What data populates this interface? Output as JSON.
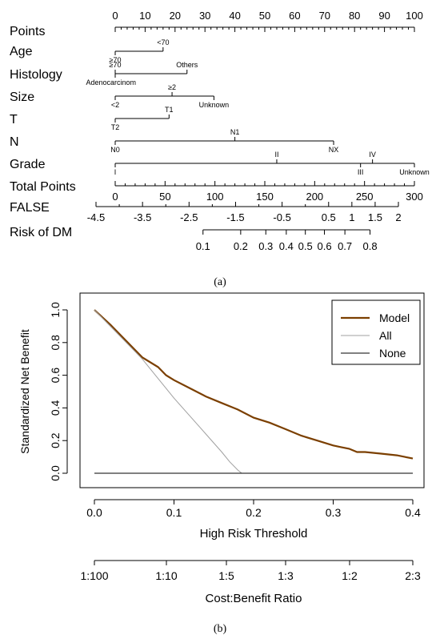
{
  "chart_data": [
    {
      "type": "nomogram",
      "caption": "(a)",
      "rows": [
        {
          "name": "Points",
          "kind": "scale",
          "min": 0,
          "max": 100,
          "labeled_ticks": [
            0,
            10,
            20,
            30,
            40,
            50,
            60,
            70,
            80,
            90,
            100
          ],
          "minor_step": 2,
          "label_side": "above"
        },
        {
          "name": "Age",
          "kind": "categorical",
          "range": [
            0,
            16
          ],
          "levels": [
            {
              "label": "<70",
              "value": 16,
              "side": "above"
            },
            {
              "label": "≥70",
              "value": 0,
              "side": "below"
            }
          ]
        },
        {
          "name": "Histology",
          "kind": "categorical",
          "range": [
            0,
            24
          ],
          "levels": [
            {
              "label": "Others",
              "value": 24,
              "side": "above"
            },
            {
              "label": "≥70",
              "value": 0,
              "side": "above"
            },
            {
              "label": "Adenocarcinom",
              "value": 0,
              "side": "below"
            }
          ]
        },
        {
          "name": "Size",
          "kind": "categorical",
          "range": [
            0,
            33
          ],
          "levels": [
            {
              "label": "≥2",
              "value": 19,
              "side": "above"
            },
            {
              "label": "<2",
              "value": 0,
              "side": "below"
            },
            {
              "label": "Unknown",
              "value": 33,
              "side": "below"
            }
          ]
        },
        {
          "name": "T",
          "kind": "categorical",
          "range": [
            0,
            18
          ],
          "levels": [
            {
              "label": "T1",
              "value": 18,
              "side": "above"
            },
            {
              "label": "T2",
              "value": 0,
              "side": "below"
            }
          ]
        },
        {
          "name": "N",
          "kind": "categorical",
          "range": [
            0,
            73
          ],
          "levels": [
            {
              "label": "N1",
              "value": 40,
              "side": "above"
            },
            {
              "label": "N0",
              "value": 0,
              "side": "below"
            },
            {
              "label": "NX",
              "value": 73,
              "side": "below"
            }
          ]
        },
        {
          "name": "Grade",
          "kind": "categorical",
          "range": [
            0,
            100
          ],
          "levels": [
            {
              "label": "II",
              "value": 54,
              "side": "above"
            },
            {
              "label": "IV",
              "value": 86,
              "side": "above"
            },
            {
              "label": "I",
              "value": 0,
              "side": "below"
            },
            {
              "label": "III",
              "value": 82,
              "side": "below"
            },
            {
              "label": "Unknown",
              "value": 100,
              "side": "below"
            }
          ]
        },
        {
          "name": "Total Points",
          "kind": "scale",
          "min": 0,
          "max": 300,
          "labeled_ticks": [
            0,
            50,
            100,
            150,
            200,
            250,
            300
          ],
          "minor_step": 10,
          "label_side": "below"
        },
        {
          "name": "FALSE",
          "kind": "scale",
          "min": -4.5,
          "max": 2,
          "labeled_ticks": [
            -4.5,
            -3.5,
            -2.5,
            -1.5,
            -0.5,
            0.5,
            1,
            1.5,
            2
          ],
          "tick_labels": [
            "-4.5",
            "-3.5",
            "-2.5",
            "-1.5",
            "-0.5",
            "0.5",
            "1",
            "1.5",
            "2"
          ],
          "minor_step": 0.5,
          "label_side": "below"
        },
        {
          "name": "Risk of DM",
          "kind": "probability",
          "ticks": [
            {
              "label": "0.1",
              "value": -2.2
            },
            {
              "label": "0.2",
              "value": -1.39
            },
            {
              "label": "0.3",
              "value": -0.85
            },
            {
              "label": "0.4",
              "value": -0.41
            },
            {
              "label": "0.5",
              "value": 0
            },
            {
              "label": "0.6",
              "value": 0.41
            },
            {
              "label": "0.7",
              "value": 0.85
            },
            {
              "label": "0.8",
              "value": 1.39
            }
          ],
          "tick_text": [
            "0.1",
            "0.2",
            "0.3",
            "0.4",
            "0.5",
            "0.6",
            "0.7",
            "0.8"
          ]
        }
      ]
    },
    {
      "type": "line",
      "caption": "(b)",
      "xlabel": "High Risk Threshold",
      "ylabel": "Standardized Net Benefit",
      "xlim": [
        0,
        0.4
      ],
      "ylim": [
        0,
        1
      ],
      "x_ticks": [
        "0.0",
        "0.1",
        "0.2",
        "0.3",
        "0.4"
      ],
      "y_ticks": [
        "0.0",
        "0.2",
        "0.4",
        "0.6",
        "0.8",
        "1.0"
      ],
      "secondary_x": {
        "label": "Cost:Benefit Ratio",
        "ticks": [
          "1:100",
          "1:10",
          "1:5",
          "1:3",
          "1:2",
          "2:3"
        ]
      },
      "legend": {
        "position": "top-right",
        "entries": [
          "Model",
          "All",
          "None"
        ]
      },
      "series": [
        {
          "name": "Model",
          "color": "#7b3f00",
          "x": [
            0,
            0.02,
            0.04,
            0.06,
            0.08,
            0.09,
            0.1,
            0.12,
            0.14,
            0.16,
            0.18,
            0.2,
            0.22,
            0.24,
            0.26,
            0.28,
            0.3,
            0.31,
            0.32,
            0.33,
            0.34,
            0.36,
            0.38,
            0.39,
            0.4
          ],
          "y": [
            1.0,
            0.91,
            0.81,
            0.71,
            0.65,
            0.6,
            0.57,
            0.52,
            0.47,
            0.43,
            0.39,
            0.34,
            0.31,
            0.27,
            0.23,
            0.2,
            0.17,
            0.16,
            0.15,
            0.13,
            0.13,
            0.12,
            0.11,
            0.1,
            0.09
          ]
        },
        {
          "name": "All",
          "color": "#a0a0a0",
          "x": [
            0,
            0.02,
            0.04,
            0.06,
            0.08,
            0.1,
            0.12,
            0.14,
            0.16,
            0.17,
            0.18,
            0.185
          ],
          "y": [
            1.0,
            0.9,
            0.8,
            0.7,
            0.58,
            0.46,
            0.35,
            0.24,
            0.13,
            0.07,
            0.02,
            0.0
          ]
        },
        {
          "name": "None",
          "color": "#000000",
          "x": [
            0,
            0.4
          ],
          "y": [
            0,
            0
          ]
        }
      ]
    }
  ]
}
